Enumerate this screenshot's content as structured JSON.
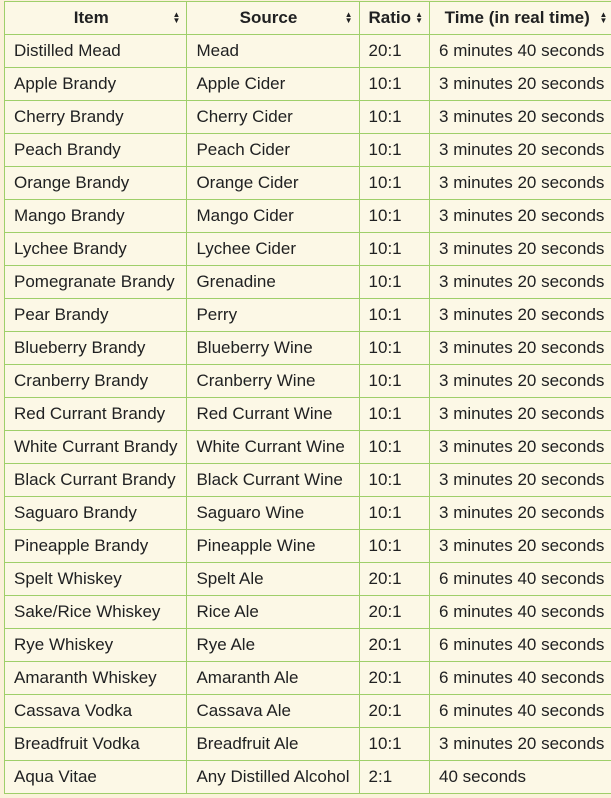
{
  "headers": [
    "Item",
    "Source",
    "Ratio",
    "Time (in real time)"
  ],
  "rows": [
    [
      "Distilled Mead",
      "Mead",
      "20:1",
      "6 minutes 40 seconds"
    ],
    [
      "Apple Brandy",
      "Apple Cider",
      "10:1",
      "3 minutes 20 seconds"
    ],
    [
      "Cherry Brandy",
      "Cherry Cider",
      "10:1",
      "3 minutes 20 seconds"
    ],
    [
      "Peach Brandy",
      "Peach Cider",
      "10:1",
      "3 minutes 20 seconds"
    ],
    [
      "Orange Brandy",
      "Orange Cider",
      "10:1",
      "3 minutes 20 seconds"
    ],
    [
      "Mango Brandy",
      "Mango Cider",
      "10:1",
      "3 minutes 20 seconds"
    ],
    [
      "Lychee Brandy",
      "Lychee Cider",
      "10:1",
      "3 minutes 20 seconds"
    ],
    [
      "Pomegranate Brandy",
      "Grenadine",
      "10:1",
      "3 minutes 20 seconds"
    ],
    [
      "Pear Brandy",
      "Perry",
      "10:1",
      "3 minutes 20 seconds"
    ],
    [
      "Blueberry Brandy",
      "Blueberry Wine",
      "10:1",
      "3 minutes 20 seconds"
    ],
    [
      "Cranberry Brandy",
      "Cranberry Wine",
      "10:1",
      "3 minutes 20 seconds"
    ],
    [
      "Red Currant Brandy",
      "Red Currant Wine",
      "10:1",
      "3 minutes 20 seconds"
    ],
    [
      "White Currant Brandy",
      "White Currant Wine",
      "10:1",
      "3 minutes 20 seconds"
    ],
    [
      "Black Currant Brandy",
      "Black Currant Wine",
      "10:1",
      "3 minutes 20 seconds"
    ],
    [
      "Saguaro Brandy",
      "Saguaro Wine",
      "10:1",
      "3 minutes 20 seconds"
    ],
    [
      "Pineapple Brandy",
      "Pineapple Wine",
      "10:1",
      "3 minutes 20 seconds"
    ],
    [
      "Spelt Whiskey",
      "Spelt Ale",
      "20:1",
      "6 minutes 40 seconds"
    ],
    [
      "Sake/Rice Whiskey",
      "Rice Ale",
      "20:1",
      "6 minutes 40 seconds"
    ],
    [
      "Rye Whiskey",
      "Rye Ale",
      "20:1",
      "6 minutes 40 seconds"
    ],
    [
      "Amaranth Whiskey",
      "Amaranth Ale",
      "20:1",
      "6 minutes 40 seconds"
    ],
    [
      "Cassava Vodka",
      "Cassava Ale",
      "20:1",
      "6 minutes 40 seconds"
    ],
    [
      "Breadfruit Vodka",
      "Breadfruit Ale",
      "10:1",
      "3 minutes 20 seconds"
    ],
    [
      "Aqua Vitae",
      "Any Distilled Alcohol",
      "2:1",
      "40 seconds"
    ]
  ]
}
